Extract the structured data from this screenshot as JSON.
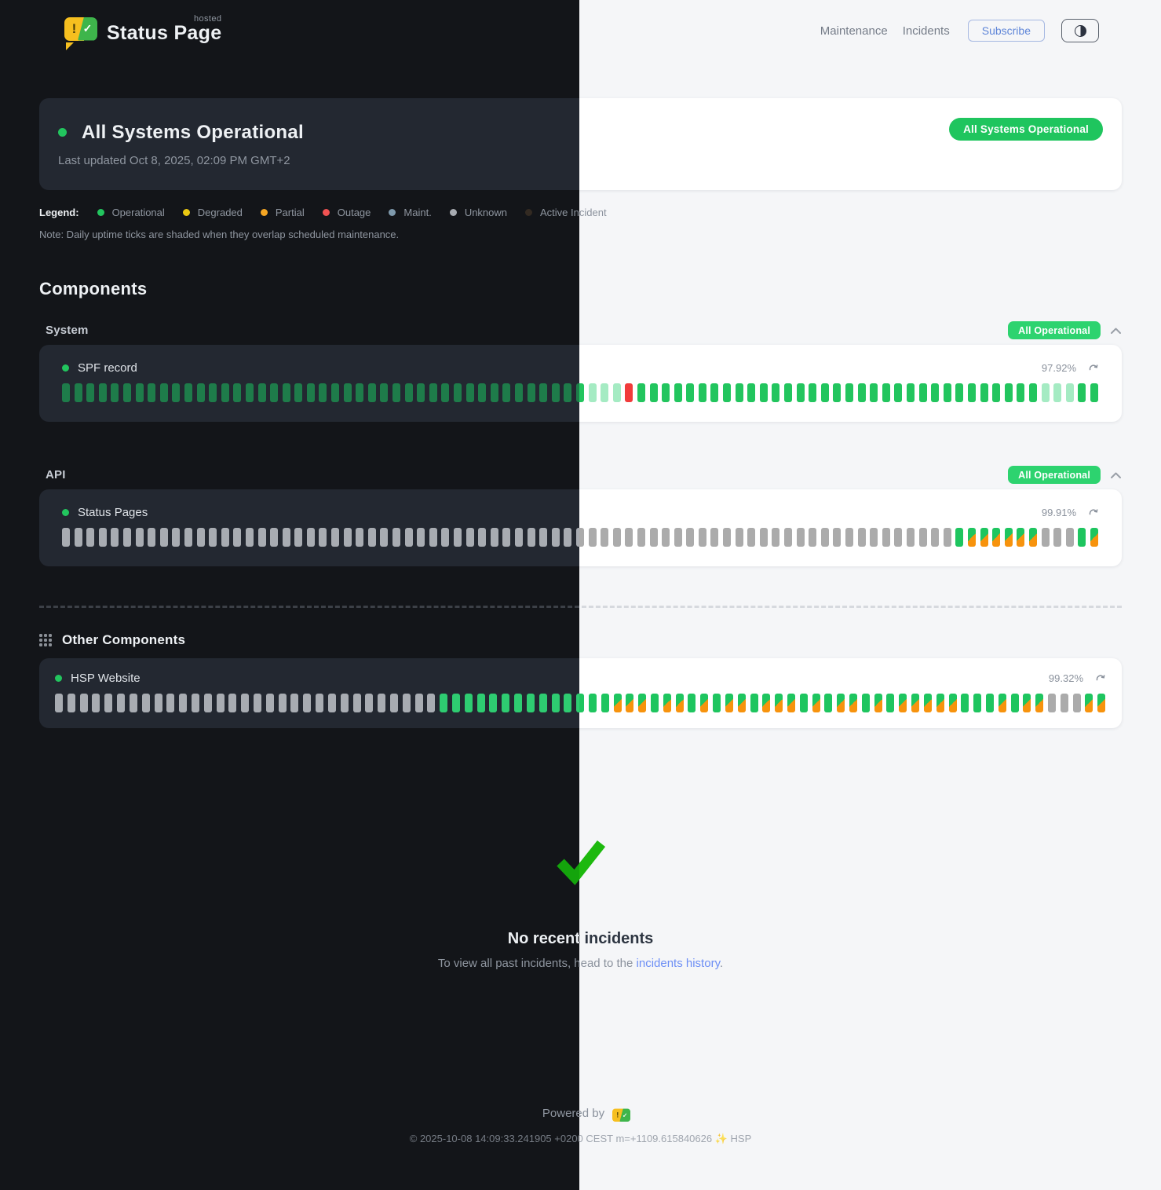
{
  "header": {
    "brand_name": "Status Page",
    "brand_sub": "hosted",
    "nav": [
      "Maintenance",
      "Incidents"
    ],
    "subscribe_label": "Subscribe",
    "theme_toggle_icon": "half-contrast-circle"
  },
  "status_banner": {
    "title": "All Systems Operational",
    "last_updated": "Last updated Oct 8, 2025, 02:09 PM GMT+2",
    "badge": "All Systems Operational"
  },
  "legend": {
    "label": "Legend:",
    "items": [
      {
        "label": "Operational",
        "color": "#22c55e"
      },
      {
        "label": "Degraded",
        "color": "#eac812"
      },
      {
        "label": "Partial",
        "color": "#f5a623"
      },
      {
        "label": "Outage",
        "color": "#f05252"
      },
      {
        "label": "Maint.",
        "color": "#7e99ac"
      },
      {
        "label": "Unknown",
        "color": "#a8acb2"
      },
      {
        "label": "Active Incident",
        "color": "#332a22"
      }
    ],
    "note": "Note: Daily uptime ticks are shaded when they overlap scheduled maintenance."
  },
  "components": {
    "heading": "Components",
    "groups": [
      {
        "name": "System",
        "badge": "All Operational",
        "items": [
          {
            "name": "SPF record",
            "uptime": "97.92%",
            "ticks": "ooooooooooooooooooooooooooooooooooooooooooofffxooooooooooooooooooooooooooooooooofffoo"
          }
        ]
      },
      {
        "name": "API",
        "badge": "All Operational",
        "items": [
          {
            "name": "Status Pages",
            "uptime": "99.91%",
            "ticks": "uuuuuuuuuuuuuuuuuuuuuuuuuuuuuuuuuuuuuuuuuuuuuuuuuuuuuuuuuuuuuuuuuuuuuuuuuOdddddduuuOd"
          }
        ]
      }
    ],
    "other": {
      "heading": "Other Components",
      "items": [
        {
          "name": "HSP Website",
          "uptime": "99.32%",
          "ticks": "uuuuuuuuuuuuuuuuuuuuuuuuuuuuuuuOOOOOOOOOOOOOOdddOddOdOddOdddOdOddOdOdddddOOOdOdduuudd"
        }
      ]
    },
    "tick_codes": {
      "o": "operational",
      "O": "operational (bright/recent)",
      "f": "operational (faded)",
      "x": "outage",
      "u": "unknown",
      "d": "operational with scheduled maintenance overlap (green/orange shaded)"
    }
  },
  "incidents": {
    "title": "No recent incidents",
    "subtitle_prefix": "To view all past incidents, head to the ",
    "link_label": "incidents history",
    "subtitle_suffix": "."
  },
  "footer": {
    "powered_by_label": "Powered by",
    "copyright": "© 2025-10-08 14:09:33.241905 +0200 CEST m=+1109.615840626 ✨ HSP"
  },
  "colors": {
    "accent_green": "#22c55e",
    "badge_green": "#2dd36f",
    "outage_red": "#f13b3b",
    "maintenance_orange": "#f7930d",
    "link_blue": "#6c8ef5",
    "subscribe_blue": "#5f86d8",
    "check_green": "#1db90e",
    "dark_bg": "#131519",
    "light_bg": "#f5f6f8"
  }
}
